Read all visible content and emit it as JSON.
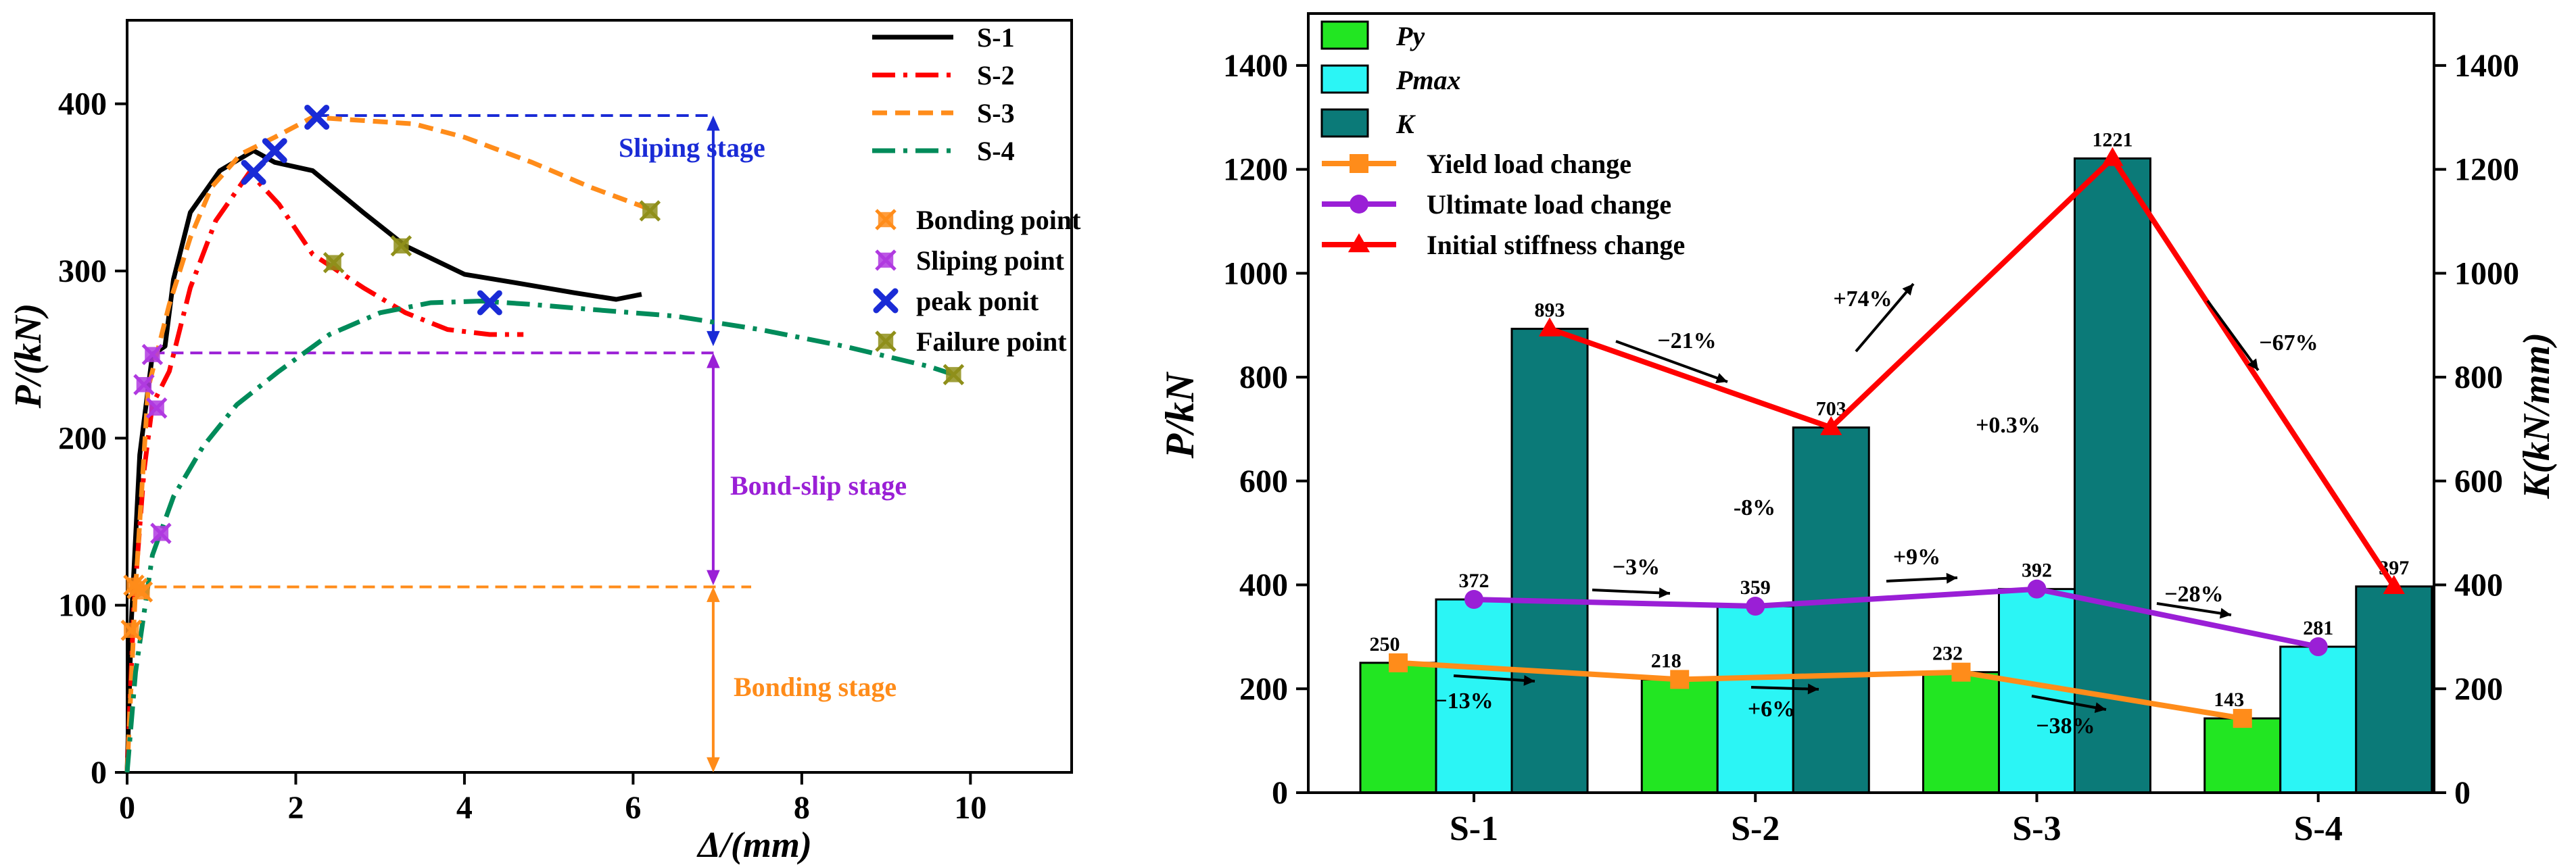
{
  "chart_data": [
    {
      "type": "line",
      "xlabel": "Δ/(mm)",
      "ylabel": "P/(kN)",
      "xlim": [
        0,
        11.2
      ],
      "ylim": [
        0,
        450
      ],
      "xticks": [
        0,
        2,
        4,
        6,
        8,
        10
      ],
      "yticks": [
        0,
        100,
        200,
        300,
        400
      ],
      "series": [
        {
          "name": "S-1",
          "color": "#000000",
          "style": "solid",
          "x": [
            0,
            0.05,
            0.15,
            0.3,
            0.45,
            0.55,
            0.75,
            1.1,
            1.5,
            1.75,
            2.2,
            2.8,
            3.3,
            4.0,
            4.6,
            5.3,
            5.8,
            6.1
          ],
          "y": [
            0,
            90,
            190,
            250,
            255,
            295,
            335,
            360,
            372,
            365,
            360,
            335,
            315,
            298,
            293,
            287,
            283,
            286
          ]
        },
        {
          "name": "S-2",
          "color": "#ff0000",
          "style": "dashdot",
          "x": [
            0,
            0.08,
            0.2,
            0.3,
            0.5,
            0.75,
            1.05,
            1.45,
            1.8,
            2.2,
            2.8,
            3.3,
            3.8,
            4.3,
            4.7
          ],
          "y": [
            0,
            100,
            180,
            220,
            240,
            290,
            330,
            359,
            340,
            310,
            290,
            275,
            265,
            262,
            262
          ]
        },
        {
          "name": "S-3",
          "color": "#ff8c1a",
          "style": "dash",
          "x": [
            0,
            0.1,
            0.25,
            0.5,
            0.75,
            1.0,
            1.35,
            1.75,
            2.2,
            2.8,
            3.4,
            4.0,
            4.8,
            5.5,
            6.2
          ],
          "y": [
            0,
            110,
            230,
            280,
            320,
            350,
            370,
            380,
            392,
            390,
            388,
            380,
            365,
            350,
            337
          ]
        },
        {
          "name": "S-4",
          "color": "#008b5a",
          "style": "dashdot",
          "x": [
            0,
            0.1,
            0.3,
            0.55,
            0.9,
            1.3,
            1.8,
            2.4,
            3.0,
            3.6,
            4.2,
            4.8,
            5.5,
            6.5,
            7.5,
            8.5,
            9.5,
            9.8
          ],
          "y": [
            0,
            60,
            130,
            165,
            195,
            220,
            240,
            262,
            275,
            281,
            282,
            280,
            277,
            273,
            265,
            255,
            243,
            238
          ]
        }
      ],
      "markers": [
        {
          "name": "Bonding point",
          "color": "#ff8c1a",
          "points": [
            [
              0.08,
              112
            ],
            [
              0.12,
              110
            ],
            [
              0.18,
              108
            ],
            [
              0.05,
              85
            ]
          ]
        },
        {
          "name": "Sliping point",
          "color": "#b03ae0",
          "points": [
            [
              0.3,
              250
            ],
            [
              0.2,
              232
            ],
            [
              0.35,
              218
            ],
            [
              0.4,
              143
            ]
          ]
        },
        {
          "name": "peak ponit",
          "color": "#1a2bd6",
          "points": [
            [
              1.5,
              359
            ],
            [
              1.75,
              372
            ],
            [
              2.25,
              392
            ],
            [
              4.3,
              281
            ]
          ]
        },
        {
          "name": "Failure point",
          "color": "#8f8f1a",
          "points": [
            [
              2.45,
              305
            ],
            [
              3.25,
              315
            ],
            [
              6.2,
              336
            ],
            [
              9.8,
              238
            ]
          ]
        }
      ],
      "guides": [
        {
          "label": "Sliping stage",
          "color": "#1a2bd6",
          "hline_y": 393,
          "hline_x": [
            2.25,
            6.95
          ],
          "arrow_x": 6.95,
          "arrow_y": [
            255,
            393
          ]
        },
        {
          "label": "Bond-slip stage",
          "color": "#9a1fd6",
          "hline_y": 251,
          "hline_x": [
            0.3,
            7.0
          ],
          "arrow_x": 6.95,
          "arrow_y": [
            112,
            251
          ]
        },
        {
          "label": "Bonding stage",
          "color": "#ff8c1a",
          "hline_y": 111,
          "hline_x": [
            0.1,
            7.4
          ],
          "arrow_x": 6.95,
          "arrow_y": [
            0,
            111
          ]
        }
      ],
      "legend": "top-right"
    },
    {
      "type": "bar",
      "xlabel": "",
      "ylabel": "P/kN",
      "y2label": "K(kN/mm)",
      "ylim": [
        0,
        1500
      ],
      "yticks": [
        0,
        200,
        400,
        600,
        800,
        1000,
        1200,
        1400
      ],
      "categories": [
        "S-1",
        "S-2",
        "S-3",
        "S-4"
      ],
      "series": [
        {
          "name": "Py",
          "color": "#22e622",
          "values": [
            250,
            218,
            232,
            143
          ]
        },
        {
          "name": "Pmax",
          "color": "#2bf5f5",
          "values": [
            372,
            359,
            392,
            281
          ]
        },
        {
          "name": "K",
          "color": "#0b7a78",
          "values": [
            893,
            703,
            1221,
            397
          ]
        }
      ],
      "value_labels": {
        "Py": [
          "250",
          "218",
          "232",
          "143"
        ],
        "Pmax": [
          "372",
          "359",
          "392",
          "281"
        ],
        "K": [
          "893",
          "703",
          "1221",
          "397"
        ]
      },
      "lines": [
        {
          "name": "Yield load change",
          "color": "#ff8c1a",
          "marker": "square",
          "values": [
            250,
            218,
            232,
            143
          ]
        },
        {
          "name": "Ultimate load change",
          "color": "#9a1fd6",
          "marker": "circle",
          "values": [
            372,
            359,
            392,
            281
          ]
        },
        {
          "name": "Initial stiffness change",
          "color": "#ff0000",
          "marker": "triangle",
          "values": [
            893,
            703,
            1221,
            397
          ]
        }
      ],
      "annotations": [
        {
          "text": "−13%"
        },
        {
          "text": "+6%"
        },
        {
          "text": "−38%"
        },
        {
          "text": "−3%"
        },
        {
          "text": "+9%"
        },
        {
          "text": "−28%"
        },
        {
          "text": "−21%"
        },
        {
          "text": "+74%"
        },
        {
          "text": "−67%"
        },
        {
          "text": "-8%"
        },
        {
          "text": "+0.3%"
        }
      ],
      "legend": "top-left"
    }
  ]
}
